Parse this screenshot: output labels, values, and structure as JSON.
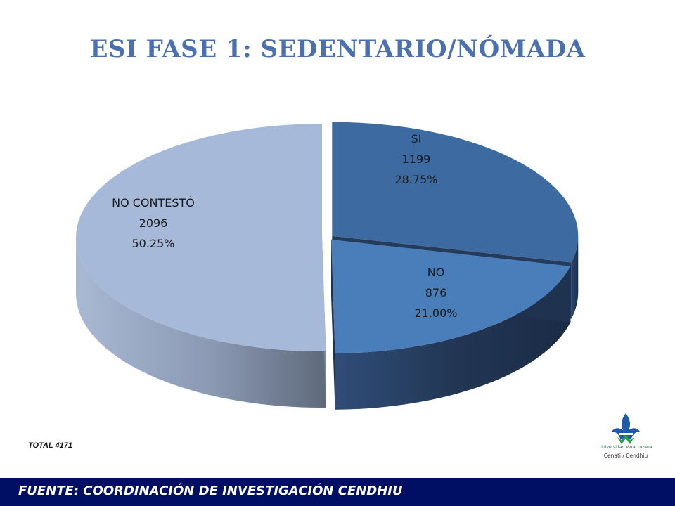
{
  "slide": {
    "title": "ESI FASE 1: SEDENTARIO/NÓMADA",
    "total_label": "TOTAL  4171",
    "footer": "FUENTE:   COORDINACIÓN DE INVESTIGACIÓN CENDHIU"
  },
  "logo": {
    "icon": "fleur-de-lis-icon",
    "name": "Universidad Veracruzana",
    "sub": "Cenati / Cendhiu",
    "colors": [
      "#1e5aa8",
      "#2e9a4a"
    ]
  },
  "chart_data": {
    "type": "pie",
    "style": "3d-exploded",
    "title": "",
    "total": 4171,
    "slices": [
      {
        "label": "SI",
        "value": 1199,
        "percent": "28.75%",
        "color": "#3d6aa1",
        "side_color": "#263a5a"
      },
      {
        "label": "NO",
        "value": 876,
        "percent": "21.00%",
        "color": "#4a7ebb",
        "side_color": "#1f3350"
      },
      {
        "label": "NO CONTESTÓ",
        "value": 2096,
        "percent": "50.25%",
        "color": "#a7b9d9",
        "side_color": "#7a879c"
      }
    ]
  }
}
